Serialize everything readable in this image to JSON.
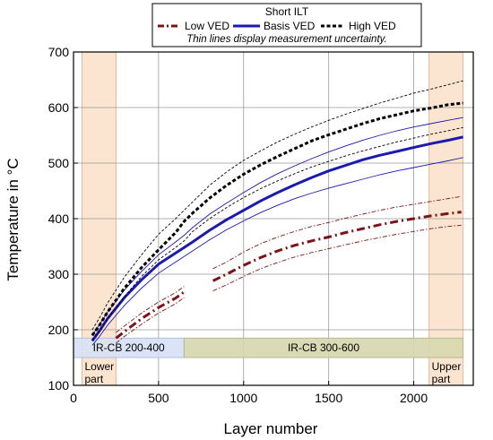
{
  "chart_data": {
    "type": "line",
    "xlabel": "Layer number",
    "ylabel": "Temperature in °C",
    "xlim": [
      0,
      2350
    ],
    "ylim": [
      100,
      700
    ],
    "x_ticks": [
      0,
      500,
      1000,
      1500,
      2000
    ],
    "y_ticks": [
      100,
      200,
      300,
      400,
      500,
      600,
      700
    ],
    "grid": true,
    "legend": {
      "title": "Short ILT",
      "placement": "top-center",
      "note": "Thin lines display measurement uncertainty."
    },
    "regions": [
      {
        "x": [
          50,
          250
        ],
        "color": "#fbe5d0",
        "label_lines": [
          "Lower",
          "part"
        ]
      },
      {
        "x": [
          2090,
          2290
        ],
        "color": "#fbe5d0",
        "label_lines": [
          "Upper",
          "part"
        ]
      }
    ],
    "bands": [
      {
        "label": "IR-CB 200-400",
        "x": [
          0,
          650
        ],
        "y": [
          150,
          185
        ],
        "color": "#d7e1f5",
        "border": "#b0bfe0"
      },
      {
        "label": "IR-CB 300-600",
        "x": [
          650,
          2290
        ],
        "y": [
          150,
          185
        ],
        "color": "#d6d7ae",
        "border": "#b8b98a"
      }
    ],
    "series": [
      {
        "name": "Low VED",
        "color": "#7b1416",
        "style": "dashdot",
        "segments": [
          {
            "x": [
              250,
              300,
              400,
              500,
              600,
              650
            ],
            "y": [
              185,
              197,
              220,
              240,
              257,
              268
            ]
          },
          {
            "x": [
              820,
              900,
              1000,
              1100,
              1200,
              1300,
              1400,
              1500,
              1600,
              1700,
              1800,
              1900,
              2000,
              2100,
              2200,
              2280
            ],
            "y": [
              288,
              300,
              316,
              330,
              342,
              352,
              360,
              367,
              375,
              382,
              389,
              395,
              400,
              405,
              409,
              412
            ]
          }
        ],
        "upper": [
          {
            "x": [
              250,
              300,
              400,
              500,
              600,
              650
            ],
            "y": [
              195,
              207,
              230,
              250,
              267,
              278
            ]
          },
          {
            "x": [
              820,
              900,
              1000,
              1100,
              1200,
              1300,
              1400,
              1500,
              1600,
              1700,
              1800,
              1900,
              2000,
              2100,
              2200,
              2280
            ],
            "y": [
              310,
              322,
              340,
              355,
              367,
              377,
              386,
              393,
              401,
              408,
              415,
              421,
              426,
              431,
              436,
              440
            ]
          }
        ],
        "lower": [
          {
            "x": [
              250,
              300,
              400,
              500,
              600,
              650
            ],
            "y": [
              176,
              188,
              210,
              230,
              247,
              258
            ]
          },
          {
            "x": [
              820,
              900,
              1000,
              1100,
              1200,
              1300,
              1400,
              1500,
              1600,
              1700,
              1800,
              1900,
              2000,
              2100,
              2200,
              2280
            ],
            "y": [
              270,
              281,
              296,
              310,
              321,
              331,
              339,
              346,
              353,
              360,
              366,
              372,
              377,
              382,
              386,
              388
            ]
          }
        ]
      },
      {
        "name": "Basis VED",
        "color": "#1a1ab0",
        "style": "solid",
        "segments": [
          {
            "x": [
              110,
              150,
              200,
              300,
              400,
              500,
              600,
              650,
              700,
              800,
              900,
              1000,
              1100,
              1200,
              1300,
              1400,
              1500,
              1600,
              1700,
              1800,
              1900,
              2000,
              2100,
              2200,
              2290
            ],
            "y": [
              180,
              197,
              220,
              258,
              290,
              318,
              338,
              348,
              358,
              379,
              398,
              415,
              432,
              447,
              461,
              474,
              486,
              496,
              506,
              514,
              521,
              528,
              535,
              541,
              547
            ]
          }
        ],
        "upper": [
          {
            "x": [
              110,
              150,
              200,
              300,
              400,
              500,
              600,
              650,
              700,
              800,
              900,
              1000,
              1100,
              1200,
              1300,
              1400,
              1500,
              1600,
              1700,
              1800,
              1900,
              2000,
              2100,
              2200,
              2290
            ],
            "y": [
              190,
              208,
              232,
              272,
              305,
              335,
              358,
              370,
              384,
              408,
              428,
              447,
              465,
              481,
              495,
              508,
              520,
              531,
              541,
              550,
              558,
              565,
              571,
              577,
              582
            ]
          }
        ],
        "lower": [
          {
            "x": [
              110,
              150,
              200,
              300,
              400,
              500,
              600,
              650,
              700,
              800,
              900,
              1000,
              1100,
              1200,
              1300,
              1400,
              1500,
              1600,
              1700,
              1800,
              1900,
              2000,
              2100,
              2200,
              2290
            ],
            "y": [
              172,
              187,
              208,
              244,
              275,
              302,
              322,
              332,
              342,
              362,
              380,
              396,
              411,
              424,
              436,
              446,
              455,
              463,
              471,
              479,
              486,
              492,
              498,
              504,
              510
            ]
          }
        ]
      },
      {
        "name": "High VED",
        "color": "#000000",
        "style": "dashed",
        "segments": [
          {
            "x": [
              110,
              150,
              200,
              300,
              400,
              500,
              600,
              650,
              700,
              800,
              900,
              1000,
              1100,
              1200,
              1300,
              1400,
              1500,
              1600,
              1700,
              1800,
              1900,
              2000,
              2100,
              2200,
              2290
            ],
            "y": [
              190,
              207,
              232,
              275,
              312,
              344,
              375,
              395,
              410,
              437,
              460,
              480,
              497,
              512,
              526,
              540,
              551,
              561,
              571,
              580,
              587,
              594,
              599,
              605,
              608
            ]
          }
        ],
        "upper": [
          {
            "x": [
              110,
              150,
              200,
              300,
              400,
              500,
              600,
              650,
              700,
              800,
              900,
              1000,
              1100,
              1200,
              1300,
              1400,
              1500,
              1600,
              1700,
              1800,
              1900,
              2000,
              2100,
              2200,
              2290
            ],
            "y": [
              200,
              220,
              248,
              295,
              335,
              372,
              400,
              415,
              430,
              460,
              484,
              505,
              522,
              538,
              552,
              565,
              577,
              588,
              598,
              608,
              617,
              626,
              633,
              641,
              648
            ]
          }
        ],
        "lower": [
          {
            "x": [
              110,
              150,
              200,
              300,
              400,
              500,
              600,
              650,
              700,
              800,
              900,
              1000,
              1100,
              1200,
              1300,
              1400,
              1500,
              1600,
              1700,
              1800,
              1900,
              2000,
              2100,
              2200,
              2290
            ],
            "y": [
              182,
              197,
              220,
              260,
              296,
              326,
              348,
              360,
              377,
              400,
              420,
              438,
              454,
              468,
              481,
              493,
              503,
              513,
              522,
              530,
              538,
              545,
              552,
              558,
              564
            ]
          }
        ]
      }
    ]
  }
}
